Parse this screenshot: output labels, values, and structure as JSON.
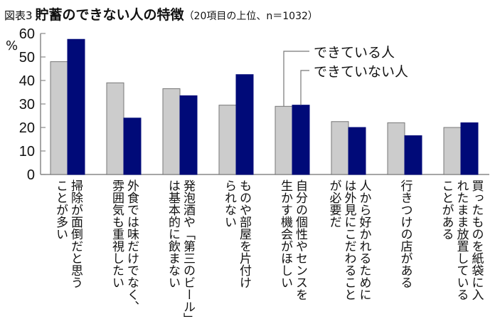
{
  "title": {
    "figure_label": "図表3",
    "main": "貯蓄のできない人の特徴",
    "sub": "（20項目の上位、n＝1032）"
  },
  "chart_data": {
    "type": "bar",
    "title": "貯蓄のできない人の特徴",
    "ylabel": "%",
    "ylim": [
      0,
      60
    ],
    "yticks": [
      "0",
      "10",
      "20",
      "30",
      "40",
      "50",
      "60"
    ],
    "grid": false,
    "legend_placement": "callout-top-right",
    "categories": [
      [
        "掃除が面倒だと思う",
        "ことが多い"
      ],
      [
        "外食では味だけでなく、",
        "雰囲気も重視したい"
      ],
      [
        "発泡酒や「第三のビール」",
        "は基本的に飲まない"
      ],
      [
        "ものや部屋を片付け",
        "られない"
      ],
      [
        "自分の個性やセンスを",
        "生かす機会がほしい"
      ],
      [
        "人から好かれるために",
        "は外見にこだわること",
        "が必要だ"
      ],
      [
        "行きつけの店がある"
      ],
      [
        "買ったものを紙袋に入",
        "れたまま放置している",
        "ことがある"
      ]
    ],
    "series": [
      {
        "name": "できている人",
        "color": "#cccccc",
        "values": [
          48,
          39,
          36.5,
          29.5,
          29,
          22.5,
          22,
          20
        ]
      },
      {
        "name": "できていない人",
        "color": "#000a78",
        "values": [
          57.5,
          24,
          33.5,
          42.5,
          29.5,
          20,
          16.5,
          22
        ]
      }
    ]
  }
}
